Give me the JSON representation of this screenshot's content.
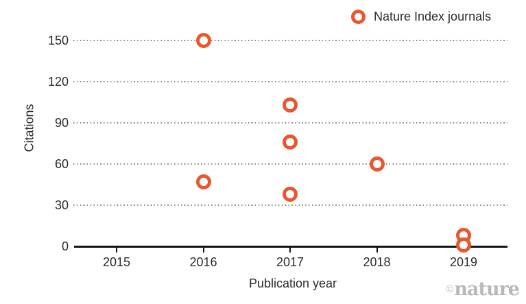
{
  "legend": {
    "label": "Nature Index journals"
  },
  "axes": {
    "x_label": "Publication year",
    "y_label": "Citations"
  },
  "watermark": {
    "symbol": "©",
    "name": "nature"
  },
  "colors": {
    "marker_orange": "#E8572D",
    "axis_black": "#111111",
    "grid_gray": "#8A8A8A",
    "text_dark": "#2B2B2B",
    "watermark_gray": "#B8B8B8"
  },
  "chart_data": {
    "type": "scatter",
    "title": "",
    "xlabel": "Publication year",
    "ylabel": "Citations",
    "x_ticks": [
      2015,
      2016,
      2017,
      2018,
      2019
    ],
    "y_ticks": [
      0,
      30,
      60,
      90,
      120,
      150
    ],
    "xlim": [
      2014.5,
      2019.5
    ],
    "ylim": [
      0,
      165
    ],
    "grid": "horizontal-dotted",
    "legend_position": "top-right",
    "marker_style": "open-circle",
    "points": [
      {
        "x": 2016,
        "y": 150
      },
      {
        "x": 2016,
        "y": 47
      },
      {
        "x": 2017,
        "y": 103
      },
      {
        "x": 2017,
        "y": 76
      },
      {
        "x": 2017,
        "y": 38
      },
      {
        "x": 2018,
        "y": 60
      },
      {
        "x": 2019,
        "y": 8
      },
      {
        "x": 2019,
        "y": 1
      }
    ]
  }
}
